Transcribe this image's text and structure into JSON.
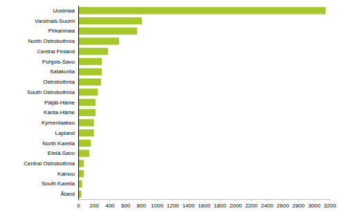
{
  "chart_data": {
    "type": "bar",
    "orientation": "horizontal",
    "categories": [
      "Uusimaa",
      "Varsinais-Suomi",
      "Pirkanmaa",
      "North Ostrobothnia",
      "Central Finland",
      "Pohjois-Savo",
      "Satakunta",
      "Ostrobothnia",
      "South Ostrobothnia",
      "Päijät-Häme",
      "Kanta-Häme",
      "Kymenlaakso",
      "Lapland",
      "North Karelia",
      "Etelä-Savo",
      "Central Ostrobothnia",
      "Kainuu",
      "South Karelia",
      "Åland"
    ],
    "values": [
      3150,
      810,
      750,
      520,
      380,
      300,
      300,
      290,
      250,
      220,
      220,
      200,
      200,
      160,
      140,
      70,
      70,
      50,
      40
    ],
    "color": "#a6c92a",
    "xlim": [
      0,
      3200
    ],
    "xticks": [
      0,
      200,
      400,
      600,
      800,
      1000,
      1200,
      1400,
      1600,
      1800,
      2000,
      2200,
      2400,
      2600,
      2800,
      3000,
      3200
    ],
    "grid": false
  }
}
